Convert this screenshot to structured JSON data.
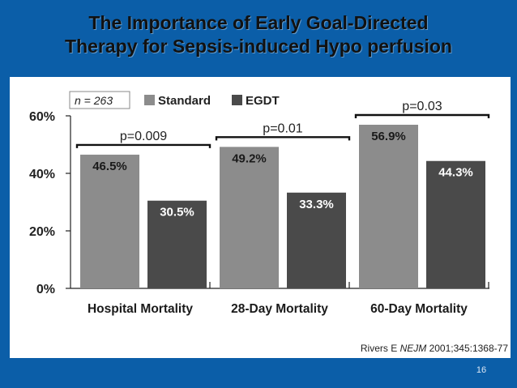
{
  "slide": {
    "title_line1": "The Importance of Early Goal-Directed",
    "title_line2": "Therapy for Sepsis-induced Hypo perfusion",
    "slide_number": "16",
    "citation_prefix": "Rivers E ",
    "citation_journal": "NEJM",
    "citation_suffix": " 2001;345:1368-77"
  },
  "colors": {
    "background": "#0b5ea8",
    "standard": "#8c8c8c",
    "egdt": "#4a4a4a"
  },
  "chart_data": {
    "type": "bar",
    "sample_label": "n = 263",
    "categories": [
      "Hospital Mortality",
      "28-Day Mortality",
      "60-Day Mortality"
    ],
    "series": [
      {
        "name": "Standard",
        "values": [
          46.5,
          49.2,
          56.9
        ]
      },
      {
        "name": "EGDT",
        "values": [
          30.5,
          33.3,
          44.3
        ]
      }
    ],
    "data_labels": [
      [
        "46.5%",
        "30.5%"
      ],
      [
        "49.2%",
        "33.3%"
      ],
      [
        "56.9%",
        "44.3%"
      ]
    ],
    "p_values": [
      "p=0.009",
      "p=0.01",
      "p=0.03"
    ],
    "yticks": [
      "0%",
      "20%",
      "40%",
      "60%"
    ],
    "ytick_values": [
      0,
      20,
      40,
      60
    ],
    "ylim": [
      0,
      60
    ],
    "legend_position": "top-left",
    "grid": false
  }
}
